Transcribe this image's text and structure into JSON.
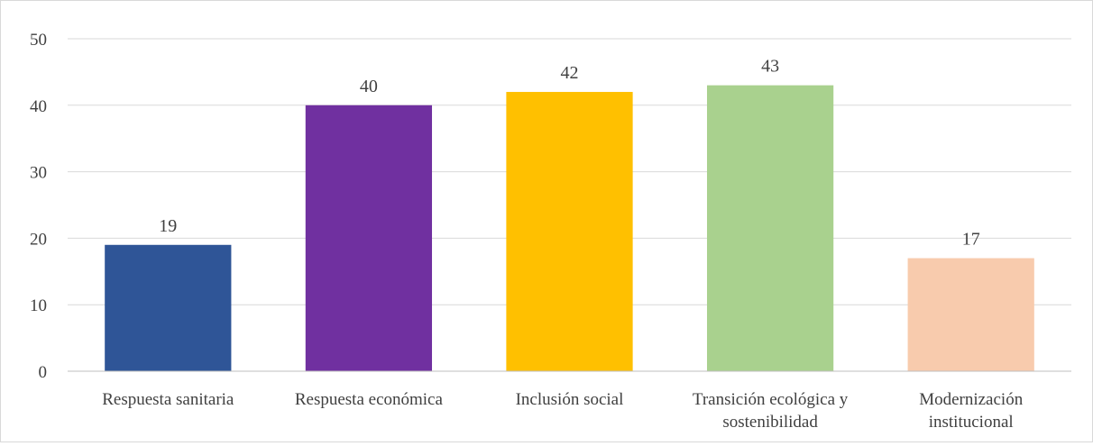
{
  "chart_data": {
    "type": "bar",
    "title": "",
    "xlabel": "",
    "ylabel": "",
    "ylim": [
      0,
      50
    ],
    "yticks": [
      0,
      10,
      20,
      30,
      40,
      50
    ],
    "grid": true,
    "legend": "none",
    "categories": [
      [
        "Respuesta sanitaria"
      ],
      [
        "Respuesta económica"
      ],
      [
        "Inclusión social"
      ],
      [
        "Transición ecológica y",
        "sostenibilidad"
      ],
      [
        "Modernización",
        "institucional"
      ]
    ],
    "values": [
      19,
      40,
      42,
      43,
      17
    ],
    "colors": [
      "#2f5597",
      "#7030a0",
      "#ffc000",
      "#a9d18e",
      "#f8cbad"
    ]
  }
}
